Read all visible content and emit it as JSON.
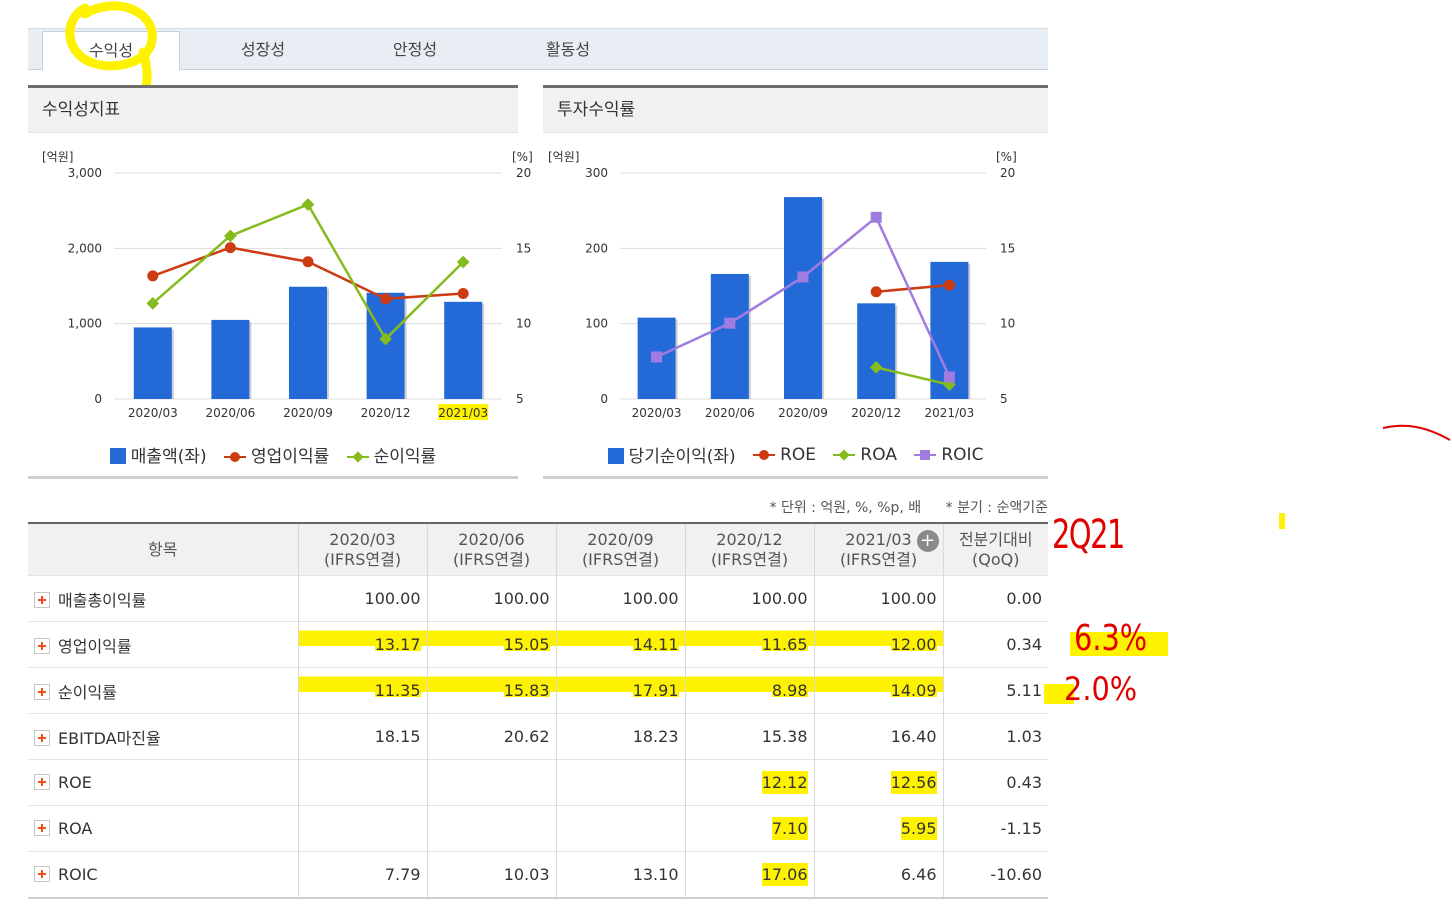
{
  "tabs": [
    {
      "label": "수익성",
      "active": true
    },
    {
      "label": "성장성",
      "active": false
    },
    {
      "label": "안정성",
      "active": false
    },
    {
      "label": "활동성",
      "active": false
    }
  ],
  "panel_left": {
    "title": "수익성지표",
    "left_unit": "[억원]",
    "right_unit": "[%]",
    "legend": [
      "매출액(좌)",
      "영업이익률",
      "순이익률"
    ]
  },
  "panel_right": {
    "title": "투자수익률",
    "left_unit": "[억원]",
    "right_unit": "[%]",
    "legend": [
      "당기순이익(좌)",
      "ROE",
      "ROA",
      "ROIC"
    ]
  },
  "chart_data": [
    {
      "type": "bar",
      "title": "수익성지표",
      "categories": [
        "2020/03",
        "2020/06",
        "2020/09",
        "2020/12",
        "2021/03"
      ],
      "highlighted_category": "2021/03",
      "y_left": {
        "label": "[억원]",
        "range": [
          0,
          3000
        ],
        "ticks": [
          "0",
          "1,000",
          "2,000",
          "3,000"
        ]
      },
      "y_right": {
        "label": "[%]",
        "range": [
          5,
          20
        ],
        "ticks": [
          "5",
          "10",
          "15",
          "20"
        ]
      },
      "series": [
        {
          "name": "매출액(좌)",
          "type": "bar",
          "axis": "left",
          "color": "#2469d8",
          "values": [
            950,
            1050,
            1490,
            1410,
            1290
          ]
        },
        {
          "name": "영업이익률",
          "type": "line",
          "axis": "right",
          "color": "#cc3b12",
          "marker": "circle",
          "values": [
            13.17,
            15.05,
            14.11,
            11.65,
            12.0
          ]
        },
        {
          "name": "순이익률",
          "type": "line",
          "axis": "right",
          "color": "#86bb1d",
          "marker": "diamond",
          "values": [
            11.35,
            15.83,
            17.91,
            8.98,
            14.09
          ]
        }
      ],
      "legend_position": "bottom"
    },
    {
      "type": "bar",
      "title": "투자수익률",
      "categories": [
        "2020/03",
        "2020/06",
        "2020/09",
        "2020/12",
        "2021/03"
      ],
      "y_left": {
        "label": "[억원]",
        "range": [
          0,
          300
        ],
        "ticks": [
          "0",
          "100",
          "200",
          "300"
        ]
      },
      "y_right": {
        "label": "[%]",
        "range": [
          5,
          20
        ],
        "ticks": [
          "5",
          "10",
          "15",
          "20"
        ]
      },
      "series": [
        {
          "name": "당기순이익(좌)",
          "type": "bar",
          "axis": "left",
          "color": "#2469d8",
          "values": [
            108,
            166,
            268,
            127,
            182
          ]
        },
        {
          "name": "ROE",
          "type": "line",
          "axis": "right",
          "color": "#cc3b12",
          "marker": "circle",
          "values": [
            null,
            null,
            null,
            12.12,
            12.56
          ]
        },
        {
          "name": "ROA",
          "type": "line",
          "axis": "right",
          "color": "#86bb1d",
          "marker": "diamond",
          "values": [
            null,
            null,
            null,
            7.1,
            5.95
          ]
        },
        {
          "name": "ROIC",
          "type": "line",
          "axis": "right",
          "color": "#a07ce0",
          "marker": "square",
          "values": [
            7.79,
            10.03,
            13.1,
            17.06,
            6.46
          ]
        }
      ],
      "legend_position": "bottom"
    }
  ],
  "notes": [
    "* 단위 : 억원, %, %p, 배",
    "* 분기 : 순액기준"
  ],
  "table": {
    "header_item": "항목",
    "columns": [
      {
        "period": "2020/03",
        "basis": "(IFRS연결)"
      },
      {
        "period": "2020/06",
        "basis": "(IFRS연결)"
      },
      {
        "period": "2020/09",
        "basis": "(IFRS연결)"
      },
      {
        "period": "2020/12",
        "basis": "(IFRS연결)"
      },
      {
        "period": "2021/03",
        "basis": "(IFRS연결)"
      }
    ],
    "qoq_header": {
      "label": "전분기대비",
      "sub": "(QoQ)"
    },
    "rows": [
      {
        "name": "매출총이익률",
        "values": [
          "100.00",
          "100.00",
          "100.00",
          "100.00",
          "100.00"
        ],
        "qoq": "0.00",
        "negative": false
      },
      {
        "name": "영업이익률",
        "values": [
          "13.17",
          "15.05",
          "14.11",
          "11.65",
          "12.00"
        ],
        "qoq": "0.34",
        "negative": false
      },
      {
        "name": "순이익률",
        "values": [
          "11.35",
          "15.83",
          "17.91",
          "8.98",
          "14.09"
        ],
        "qoq": "5.11",
        "negative": false
      },
      {
        "name": "EBITDA마진율",
        "values": [
          "18.15",
          "20.62",
          "18.23",
          "15.38",
          "16.40"
        ],
        "qoq": "1.03",
        "negative": false
      },
      {
        "name": "ROE",
        "values": [
          "",
          "",
          "",
          "12.12",
          "12.56"
        ],
        "qoq": "0.43",
        "negative": false
      },
      {
        "name": "ROA",
        "values": [
          "",
          "",
          "",
          "7.10",
          "5.95"
        ],
        "qoq": "-1.15",
        "negative": true
      },
      {
        "name": "ROIC",
        "values": [
          "7.79",
          "10.03",
          "13.10",
          "17.06",
          "6.46"
        ],
        "qoq": "-10.60",
        "negative": true
      }
    ]
  },
  "annotations": {
    "quarter": "2Q21",
    "op_margin": "6.3%",
    "net_margin": "2.0%"
  },
  "icons": {
    "expand": "plus-icon",
    "add_column": "add-circle-icon"
  },
  "colors": {
    "bar": "#2469d8",
    "line_red": "#cc3b12",
    "line_green": "#86bb1d",
    "line_purple": "#a07ce0",
    "highlight": "#fff200",
    "annotation": "#e00000"
  }
}
